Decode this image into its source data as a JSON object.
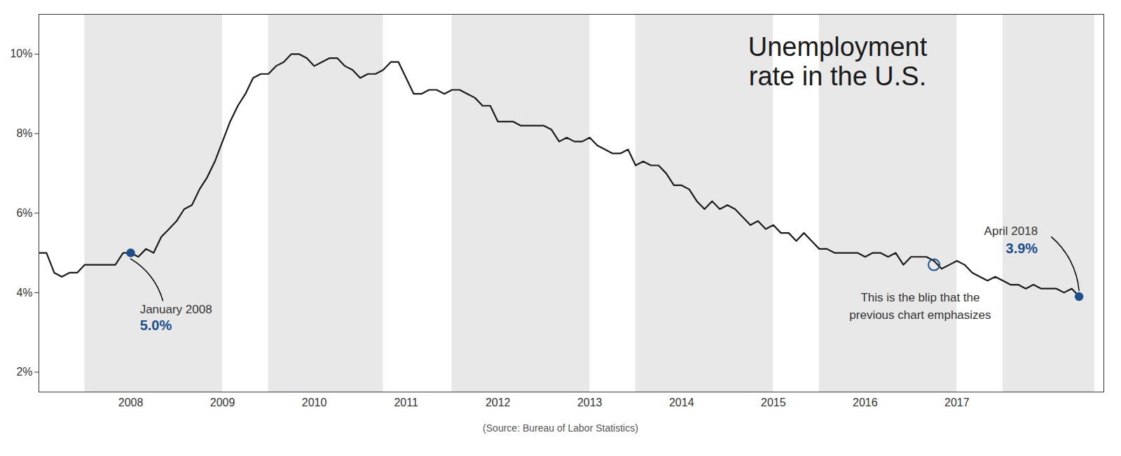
{
  "chart_data": {
    "type": "line",
    "title": "Unemployment\nrate in the U.S.",
    "source": "(Source: Bureau of Labor Statistics)",
    "color": "#1a1a1a",
    "x": [
      2007.0,
      2007.083,
      2007.167,
      2007.25,
      2007.333,
      2007.417,
      2007.5,
      2007.583,
      2007.667,
      2007.75,
      2007.833,
      2007.917,
      2008.0,
      2008.083,
      2008.167,
      2008.25,
      2008.333,
      2008.417,
      2008.5,
      2008.583,
      2008.667,
      2008.75,
      2008.833,
      2008.917,
      2009.0,
      2009.083,
      2009.167,
      2009.25,
      2009.333,
      2009.417,
      2009.5,
      2009.583,
      2009.667,
      2009.75,
      2009.833,
      2009.917,
      2010.0,
      2010.083,
      2010.167,
      2010.25,
      2010.333,
      2010.417,
      2010.5,
      2010.583,
      2010.667,
      2010.75,
      2010.833,
      2010.917,
      2011.0,
      2011.083,
      2011.167,
      2011.25,
      2011.333,
      2011.417,
      2011.5,
      2011.583,
      2011.667,
      2011.75,
      2011.833,
      2011.917,
      2012.0,
      2012.083,
      2012.167,
      2012.25,
      2012.333,
      2012.417,
      2012.5,
      2012.583,
      2012.667,
      2012.75,
      2012.833,
      2012.917,
      2013.0,
      2013.083,
      2013.167,
      2013.25,
      2013.333,
      2013.417,
      2013.5,
      2013.583,
      2013.667,
      2013.75,
      2013.833,
      2013.917,
      2014.0,
      2014.083,
      2014.167,
      2014.25,
      2014.333,
      2014.417,
      2014.5,
      2014.583,
      2014.667,
      2014.75,
      2014.833,
      2014.917,
      2015.0,
      2015.083,
      2015.167,
      2015.25,
      2015.333,
      2015.417,
      2015.5,
      2015.583,
      2015.667,
      2015.75,
      2015.833,
      2015.917,
      2016.0,
      2016.083,
      2016.167,
      2016.25,
      2016.333,
      2016.417,
      2016.5,
      2016.583,
      2016.667,
      2016.75,
      2016.833,
      2016.917,
      2017.0,
      2017.083,
      2017.167,
      2017.25,
      2017.333,
      2017.417,
      2017.5,
      2017.583,
      2017.667,
      2017.75,
      2017.833,
      2017.917,
      2018.0,
      2018.083,
      2018.167,
      2018.25,
      2018.333
    ],
    "values": [
      5.0,
      5.0,
      4.5,
      4.4,
      4.5,
      4.5,
      4.7,
      4.7,
      4.7,
      4.7,
      4.7,
      5.0,
      5.0,
      4.9,
      5.1,
      5.0,
      5.4,
      5.6,
      5.8,
      6.1,
      6.2,
      6.6,
      6.9,
      7.3,
      7.8,
      8.3,
      8.7,
      9.0,
      9.4,
      9.5,
      9.5,
      9.7,
      9.8,
      10.0,
      10.0,
      9.9,
      9.7,
      9.8,
      9.9,
      9.9,
      9.7,
      9.6,
      9.4,
      9.5,
      9.5,
      9.6,
      9.8,
      9.8,
      9.4,
      9.0,
      9.0,
      9.1,
      9.1,
      9.0,
      9.1,
      9.1,
      9.0,
      8.9,
      8.7,
      8.7,
      8.3,
      8.3,
      8.3,
      8.2,
      8.2,
      8.2,
      8.2,
      8.1,
      7.8,
      7.9,
      7.8,
      7.8,
      7.9,
      7.7,
      7.6,
      7.5,
      7.5,
      7.6,
      7.2,
      7.3,
      7.2,
      7.2,
      7.0,
      6.7,
      6.7,
      6.6,
      6.3,
      6.1,
      6.3,
      6.1,
      6.2,
      6.1,
      5.9,
      5.7,
      5.8,
      5.6,
      5.7,
      5.5,
      5.5,
      5.3,
      5.5,
      5.3,
      5.1,
      5.1,
      5.0,
      5.0,
      5.0,
      5.0,
      4.9,
      5.0,
      5.0,
      4.9,
      5.0,
      4.7,
      4.9,
      4.9,
      4.9,
      4.8,
      4.6,
      4.7,
      4.8,
      4.7,
      4.5,
      4.4,
      4.3,
      4.4,
      4.3,
      4.2,
      4.2,
      4.1,
      4.2,
      4.1,
      4.1,
      4.1,
      4.0,
      4.1,
      3.9
    ],
    "xlim": [
      2007.0,
      2018.6
    ],
    "xticks": [
      2008,
      2009,
      2010,
      2011,
      2012,
      2013,
      2014,
      2015,
      2016,
      2017
    ],
    "ylim": [
      1.5,
      11.0
    ],
    "yticks": [
      {
        "value": 2,
        "label": "2%"
      },
      {
        "value": 4,
        "label": "4%"
      },
      {
        "value": 6,
        "label": "6%"
      },
      {
        "value": 8,
        "label": "8%"
      },
      {
        "value": 10,
        "label": "10%"
      }
    ],
    "grid": false,
    "bands": {
      "color": "#e8e8e8",
      "ranges": [
        [
          2007.5,
          2009.0
        ],
        [
          2009.5,
          2010.75
        ],
        [
          2011.5,
          2013.0
        ],
        [
          2013.5,
          2015.0
        ],
        [
          2015.5,
          2017.0
        ],
        [
          2017.5,
          2018.5
        ]
      ]
    },
    "annotations": [
      {
        "x": 2008.0,
        "y": 5.0,
        "label": "January 2008",
        "value_label": "5.0%",
        "color": "#1f4e8c",
        "marker": "dot"
      },
      {
        "x": 2018.33,
        "y": 3.9,
        "label": "April 2018",
        "value_label": "3.9%",
        "color": "#1f4e8c",
        "marker": "dot"
      },
      {
        "x": 2016.75,
        "y": 4.7,
        "label": "This is the blip that the\nprevious chart emphasizes",
        "color": "#1f4e8c",
        "marker": "circle"
      }
    ]
  }
}
